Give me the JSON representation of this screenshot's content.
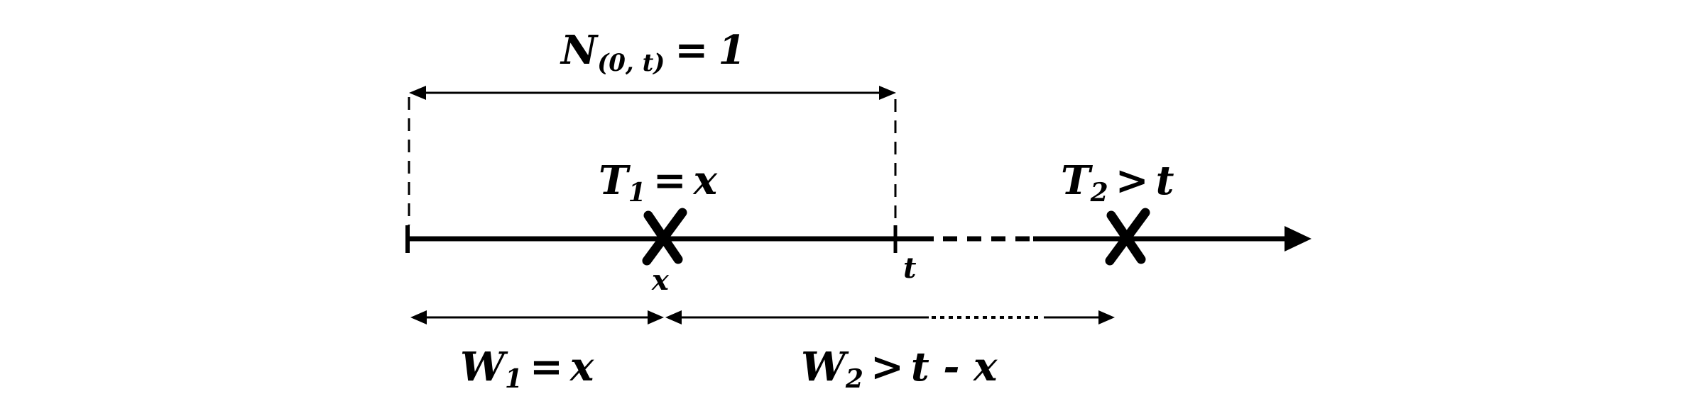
{
  "diagram": {
    "colors": {
      "ink": "#000000",
      "background": "#ffffff"
    },
    "top_label": {
      "symbol": "N",
      "subscript": "(0, t)",
      "equals": "=",
      "value": "1"
    },
    "event1_label": {
      "symbol": "T",
      "subscript": "1",
      "relation": "=",
      "value": "x"
    },
    "event2_label": {
      "symbol": "T",
      "subscript": "2",
      "relation": ">",
      "value": "t"
    },
    "tick_t_label": "t",
    "event1_x_label": "x",
    "wait1_label": {
      "symbol": "W",
      "subscript": "1",
      "relation": "=",
      "value": "x"
    },
    "wait2_label": {
      "symbol": "W",
      "subscript": "2",
      "relation": ">",
      "value": "t - x"
    },
    "markers": {
      "event_mark": "cross-mark-icon",
      "arrowhead": "arrowhead-icon"
    }
  }
}
